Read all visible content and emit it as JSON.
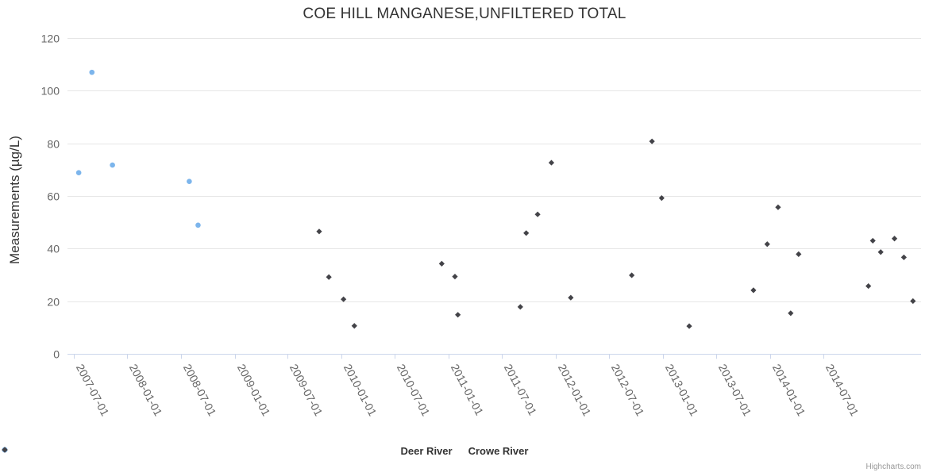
{
  "chart_data": {
    "type": "scatter",
    "title": "COE HILL MANGANESE,UNFILTERED TOTAL",
    "xlabel": "",
    "ylabel": "Measurements (µg/L)",
    "ylim": [
      0,
      120
    ],
    "yticks": [
      0,
      20,
      40,
      60,
      80,
      100,
      120
    ],
    "xtick_labels": [
      "2007-07-01",
      "2008-01-01",
      "2008-07-01",
      "2009-01-01",
      "2009-07-01",
      "2010-01-01",
      "2010-07-01",
      "2011-01-01",
      "2011-07-01",
      "2012-01-01",
      "2012-07-01",
      "2013-01-01",
      "2013-07-01",
      "2014-01-01",
      "2014-07-01"
    ],
    "grid": "horizontal gridlines only",
    "legend_position": "bottom-center",
    "series": [
      {
        "name": "Deer River",
        "color": "#7cb5ec",
        "marker": "circle",
        "points": [
          [
            "2007-07-19",
            68.8
          ],
          [
            "2007-09-02",
            106.9
          ],
          [
            "2007-11-11",
            71.7
          ],
          [
            "2008-07-30",
            65.5
          ],
          [
            "2008-08-29",
            48.9
          ]
        ]
      },
      {
        "name": "Crowe River",
        "color": "#434348",
        "marker": "diamond",
        "points": [
          [
            "2009-10-16",
            46.5
          ],
          [
            "2009-11-18",
            29.2
          ],
          [
            "2010-01-07",
            20.8
          ],
          [
            "2010-02-13",
            10.7
          ],
          [
            "2010-12-08",
            34.3
          ],
          [
            "2011-01-22",
            29.4
          ],
          [
            "2011-02-01",
            14.9
          ],
          [
            "2011-09-02",
            17.9
          ],
          [
            "2011-09-22",
            45.9
          ],
          [
            "2011-10-31",
            53.0
          ],
          [
            "2011-12-17",
            72.6
          ],
          [
            "2012-02-21",
            21.4
          ],
          [
            "2012-09-16",
            29.9
          ],
          [
            "2012-11-24",
            80.7
          ],
          [
            "2012-12-27",
            59.2
          ],
          [
            "2013-03-31",
            10.6
          ],
          [
            "2013-11-05",
            24.2
          ],
          [
            "2013-12-22",
            41.7
          ],
          [
            "2014-01-28",
            55.7
          ],
          [
            "2014-03-12",
            15.5
          ],
          [
            "2014-04-08",
            37.9
          ],
          [
            "2014-12-02",
            25.8
          ],
          [
            "2014-12-17",
            43.0
          ],
          [
            "2015-01-13",
            38.7
          ],
          [
            "2015-03-01",
            43.8
          ],
          [
            "2015-04-02",
            36.7
          ],
          [
            "2015-05-03",
            20.1
          ]
        ]
      }
    ]
  },
  "credits": {
    "text": "Highcharts.com"
  },
  "colors": {
    "grid": "#e6e6e6",
    "axis_line": "#ccd6eb",
    "axis_label": "#666666",
    "text": "#333333",
    "credit": "#999999",
    "background": "#ffffff"
  }
}
